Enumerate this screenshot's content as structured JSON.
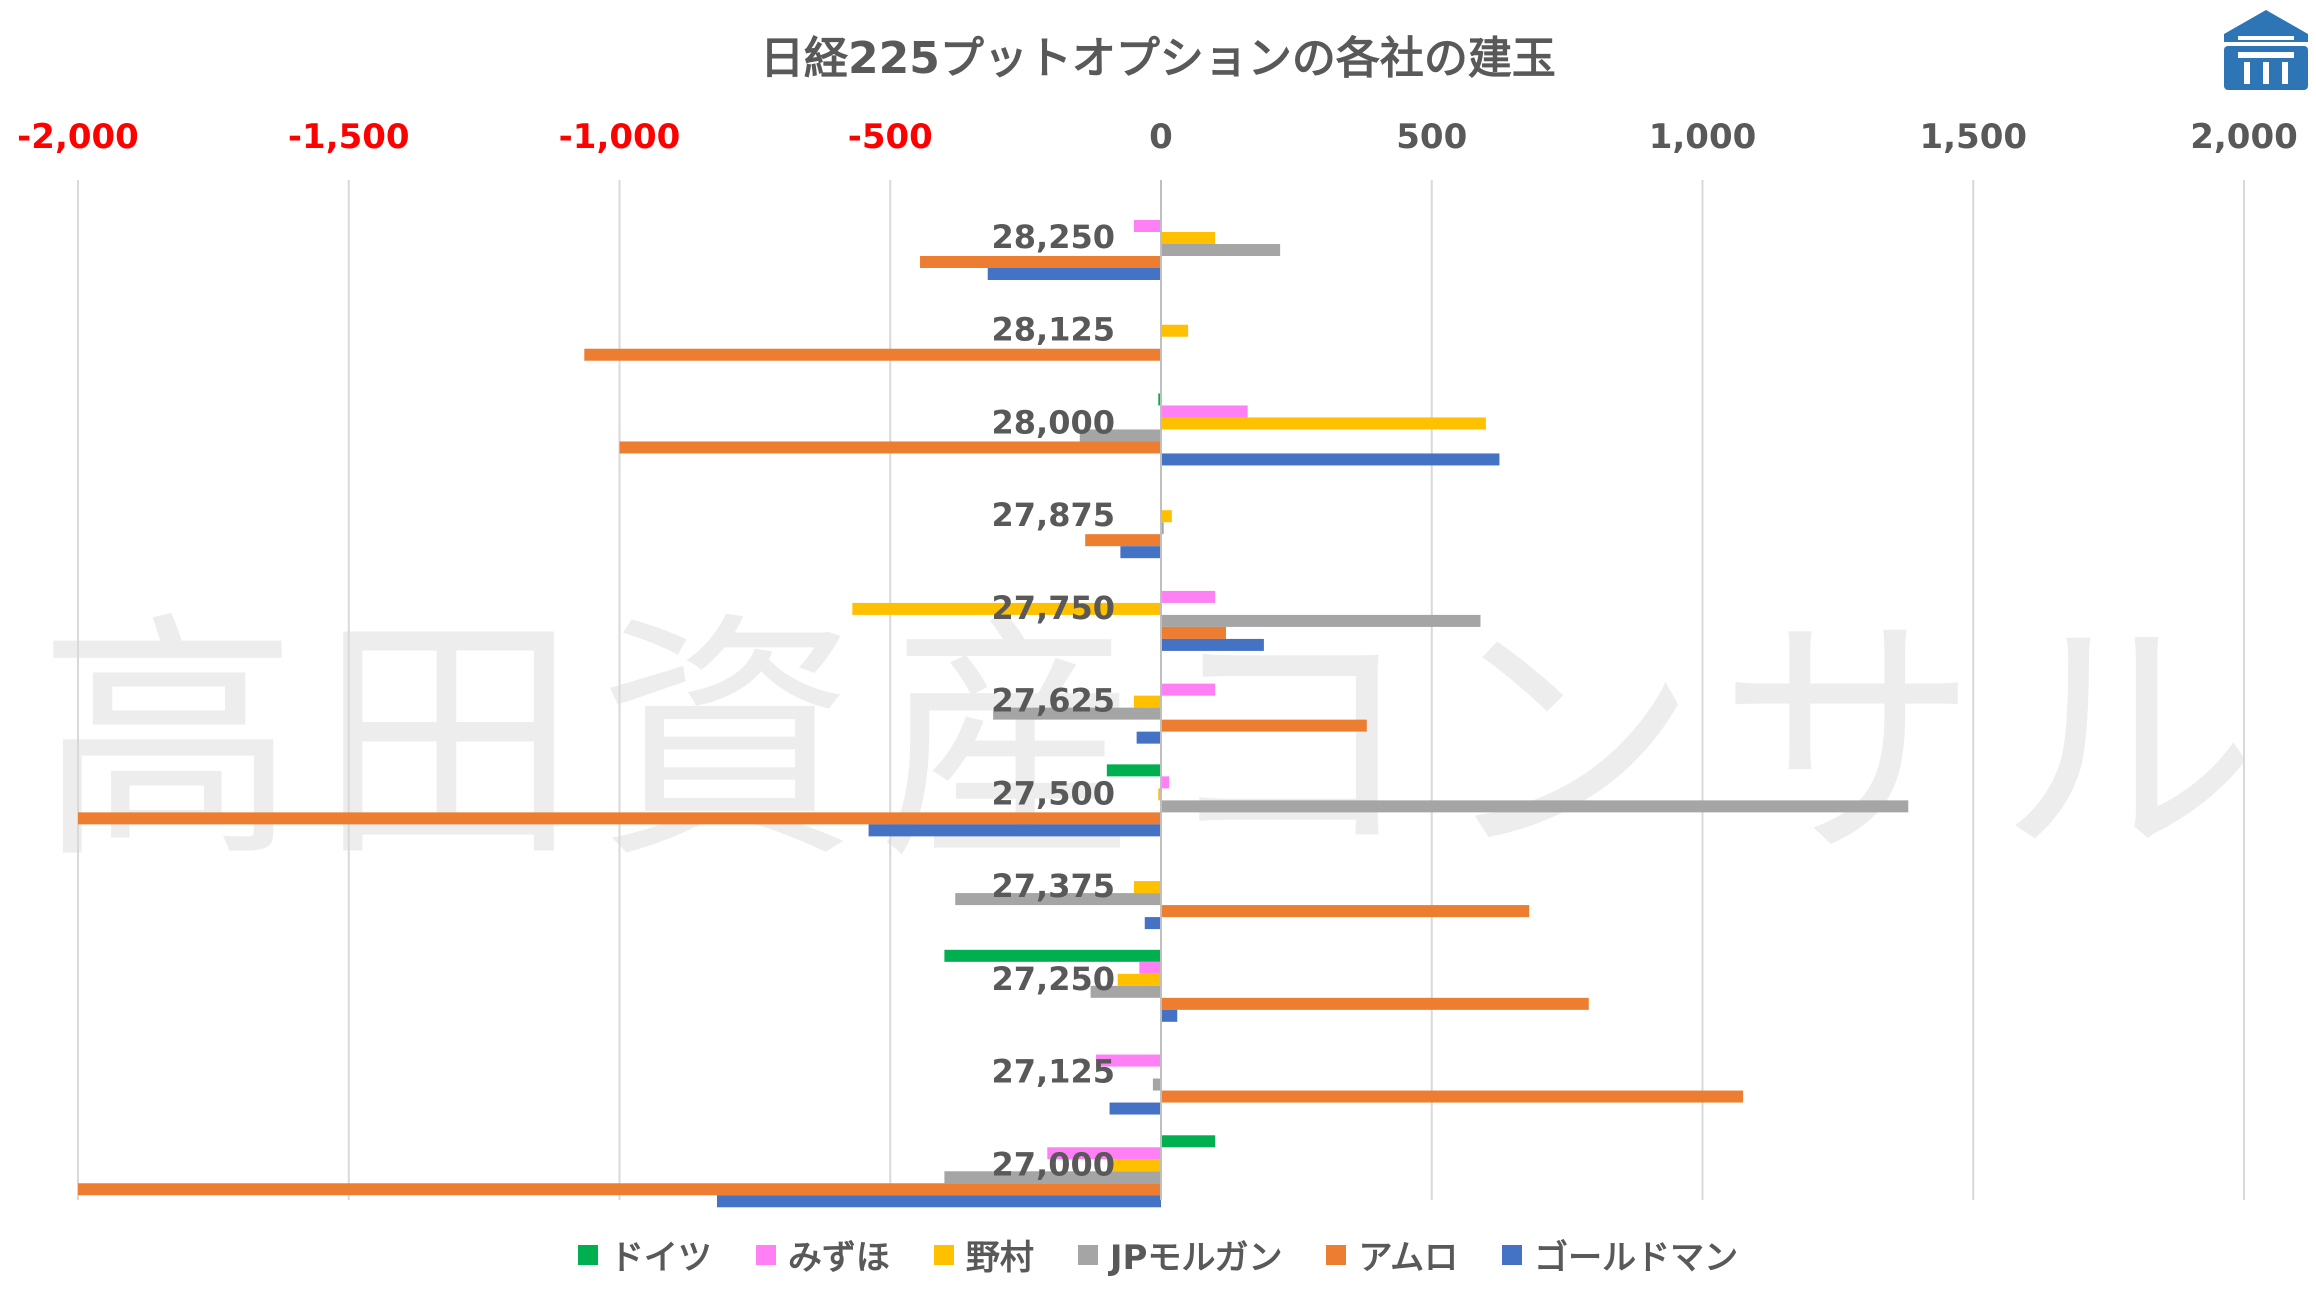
{
  "title": "日経225プットオプションの各社の建玉",
  "watermark": "高田資産コンサル",
  "chart_data": {
    "type": "bar",
    "orientation": "horizontal",
    "title": "日経225プットオプションの各社の建玉",
    "xlim": [
      -2000,
      2000
    ],
    "x_ticks": [
      -2000,
      -1500,
      -1000,
      -500,
      0,
      500,
      1000,
      1500,
      2000
    ],
    "x_tick_labels": [
      "-2,000",
      "-1,500",
      "-1,000",
      "-500",
      "0",
      "500",
      "1,000",
      "1,500",
      "2,000"
    ],
    "x_tick_colors": [
      "#ff0000",
      "#ff0000",
      "#ff0000",
      "#ff0000",
      "#595959",
      "#595959",
      "#595959",
      "#595959",
      "#595959"
    ],
    "grid": true,
    "legend_position": "bottom",
    "categories": [
      "28,250",
      "28,125",
      "28,000",
      "27,875",
      "27,750",
      "27,625",
      "27,500",
      "27,375",
      "27,250",
      "27,125",
      "27,000"
    ],
    "series": [
      {
        "name": "ドイツ",
        "color": "#00b050",
        "values": [
          0,
          0,
          -5,
          0,
          0,
          0,
          -100,
          0,
          -400,
          0,
          100
        ]
      },
      {
        "name": "みずほ",
        "color": "#ff7ff5",
        "values": [
          -50,
          0,
          160,
          0,
          100,
          100,
          15,
          0,
          -40,
          -120,
          -210
        ]
      },
      {
        "name": "野村",
        "color": "#ffc000",
        "values": [
          100,
          50,
          600,
          20,
          -570,
          -50,
          -5,
          -50,
          -80,
          0,
          -90
        ]
      },
      {
        "name": "JPモルガン",
        "color": "#a5a5a5",
        "values": [
          220,
          0,
          -150,
          5,
          590,
          -310,
          1380,
          -380,
          -130,
          -15,
          -400
        ]
      },
      {
        "name": "アムロ",
        "color": "#ed7d31",
        "values": [
          -445,
          -1065,
          -1000,
          -140,
          120,
          380,
          -2000,
          680,
          790,
          1075,
          -2000
        ]
      },
      {
        "name": "ゴールドマン",
        "color": "#4472c4",
        "values": [
          -320,
          0,
          625,
          -75,
          190,
          -45,
          -540,
          -30,
          30,
          -95,
          -820
        ]
      }
    ]
  }
}
